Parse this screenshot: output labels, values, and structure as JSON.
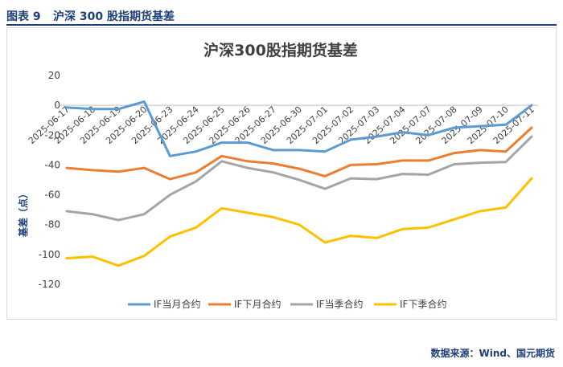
{
  "header": {
    "figure_number": "图表 9",
    "figure_title": "沪深 300 股指期货基差"
  },
  "source_note": "数据来源：Wind、国元期货",
  "chart_data": {
    "type": "line",
    "title": "沪深300股指期货基差",
    "xlabel": "",
    "ylabel": "基差（点）",
    "ylim": [
      -120,
      20
    ],
    "yticks": [
      20,
      0,
      -20,
      -40,
      -60,
      -80,
      -100,
      -120
    ],
    "grid": false,
    "legend_position": "bottom",
    "categories": [
      "2025-06-17",
      "2025-06-18",
      "2025-06-19",
      "2025-06-20",
      "2025-06-23",
      "2025-06-24",
      "2025-06-25",
      "2025-06-26",
      "2025-06-27",
      "2025-06-30",
      "2025-07-01",
      "2025-07-02",
      "2025-07-03",
      "2025-07-04",
      "2025-07-07",
      "2025-07-08",
      "2025-07-09",
      "2025-07-10",
      "2025-07-11"
    ],
    "series": [
      {
        "name": "IF当月合约",
        "color": "#5b9bd5",
        "values": [
          -1.5,
          -2.5,
          -2.5,
          2.5,
          -34,
          -31,
          -25,
          -25,
          -30,
          -30,
          -31,
          -23,
          -21,
          -18,
          -20,
          -15,
          -14,
          -13,
          0
        ]
      },
      {
        "name": "IF下月合约",
        "color": "#ed7d31",
        "values": [
          -42,
          -43.5,
          -44.5,
          -42,
          -49.5,
          -45,
          -34,
          -37.5,
          -39,
          -42.5,
          -47.5,
          -40,
          -39.5,
          -37,
          -37,
          -32,
          -30,
          -31,
          -15
        ]
      },
      {
        "name": "IF当季合约",
        "color": "#a5a5a5",
        "values": [
          -71,
          -73,
          -77,
          -73,
          -60,
          -51,
          -37.5,
          -42,
          -45,
          -50,
          -56,
          -49,
          -49.5,
          -46,
          -46.5,
          -39.5,
          -38.5,
          -38,
          -21
        ]
      },
      {
        "name": "IF下季合约",
        "color": "#ffc000",
        "values": [
          -102.5,
          -101.5,
          -107.5,
          -101,
          -88,
          -82,
          -69,
          -72,
          -75,
          -80,
          -92,
          -87.5,
          -89,
          -83,
          -82,
          -76.5,
          -71,
          -68.5,
          -49
        ]
      }
    ]
  }
}
